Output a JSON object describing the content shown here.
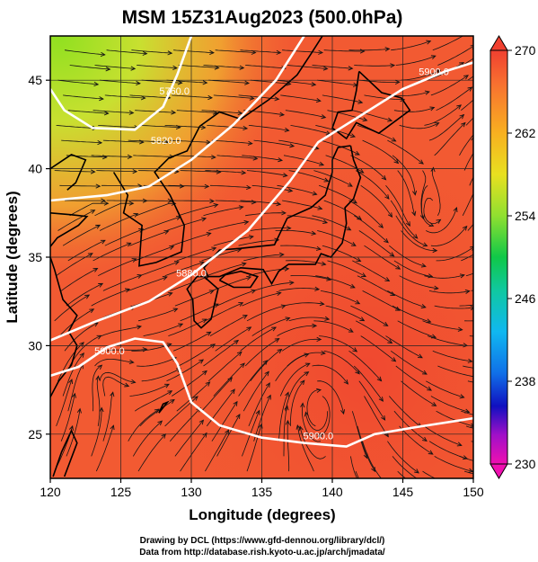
{
  "title": "MSM 15Z31Aug2023 (500.0hPa)",
  "xlabel": "Longitude (degrees)",
  "ylabel": "Latitude  (degrees)",
  "x_ticks": [
    "120",
    "125",
    "130",
    "135",
    "140",
    "145",
    "150"
  ],
  "y_ticks": [
    "25",
    "30",
    "35",
    "40",
    "45"
  ],
  "colorbar": {
    "ticks": [
      "270",
      "262",
      "254",
      "246",
      "238",
      "230"
    ],
    "min": 230,
    "max": 270
  },
  "contour_labels": [
    "5760.0",
    "5820.0",
    "5880.0",
    "5900.0",
    "5900.0",
    "5900.0"
  ],
  "footer": {
    "line1": "Drawing by DCL (https://www.gfd-dennou.org/library/dcl/)",
    "line2": "Data from http://database.rish.kyoto-u.ac.jp/arch/jmadata/"
  },
  "chart_data": {
    "type": "map",
    "variable": "temperature (K) shaded, geopotential height contours, wind streamlines",
    "xlim": [
      120,
      150
    ],
    "ylim": [
      22.5,
      47.5
    ],
    "color_range": [
      230,
      270
    ],
    "contours": [
      {
        "label": "5760.0",
        "points": [
          [
            120,
            44.5
          ],
          [
            121,
            43.3
          ],
          [
            123,
            42.3
          ],
          [
            126,
            42.2
          ],
          [
            128,
            43.5
          ],
          [
            129,
            45.3
          ],
          [
            130,
            47.5
          ]
        ]
      },
      {
        "label": "5820.0",
        "points": [
          [
            120,
            38.2
          ],
          [
            124,
            38.5
          ],
          [
            127,
            39.0
          ],
          [
            130,
            40.5
          ],
          [
            133,
            42.5
          ],
          [
            136,
            45.0
          ],
          [
            138,
            47.5
          ]
        ]
      },
      {
        "label": "5880.0",
        "points": [
          [
            120,
            30.3
          ],
          [
            123,
            31.3
          ],
          [
            127,
            32.5
          ],
          [
            130,
            34.0
          ],
          [
            134,
            36.5
          ],
          [
            137,
            39.3
          ],
          [
            139,
            41.5
          ],
          [
            142,
            43.0
          ],
          [
            145,
            44.5
          ],
          [
            148,
            45.5
          ],
          [
            150,
            46.0
          ]
        ]
      },
      {
        "label": "5900.0",
        "points": [
          [
            120,
            28.3
          ],
          [
            122,
            28.8
          ],
          [
            124,
            29.9
          ],
          [
            126,
            30.4
          ],
          [
            128,
            30.2
          ],
          [
            129,
            29.0
          ],
          [
            130,
            26.8
          ],
          [
            132,
            25.5
          ],
          [
            135,
            24.8
          ],
          [
            138,
            24.5
          ],
          [
            141,
            24.3
          ],
          [
            143,
            25.0
          ],
          [
            146,
            25.4
          ],
          [
            150,
            25.9
          ]
        ]
      }
    ]
  }
}
